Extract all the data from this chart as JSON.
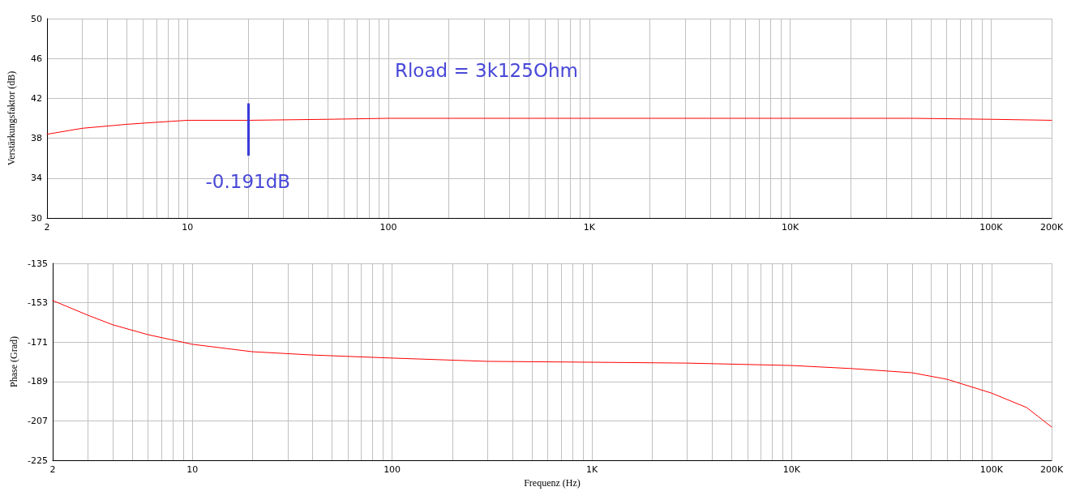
{
  "chart_data": [
    {
      "type": "line",
      "ylabel": "Verstärkungsfaktor (dB)",
      "log": "x",
      "grid": true,
      "marker": "none",
      "line_style": "solid",
      "xlim": [
        2,
        200000
      ],
      "ylim": [
        30,
        50
      ],
      "yticks": [
        30,
        34,
        38,
        42,
        46,
        50
      ],
      "xticks": [
        2,
        {
          "value": 3,
          "label": null
        },
        {
          "value": 4,
          "label": null
        },
        {
          "value": 5,
          "label": null
        },
        {
          "value": 6,
          "label": null
        },
        {
          "value": 7,
          "label": null
        },
        {
          "value": 8,
          "label": null
        },
        {
          "value": 9,
          "label": null
        },
        10,
        {
          "value": 20,
          "label": null
        },
        {
          "value": 30,
          "label": null
        },
        {
          "value": 40,
          "label": null
        },
        {
          "value": 50,
          "label": null
        },
        {
          "value": 60,
          "label": null
        },
        {
          "value": 70,
          "label": null
        },
        {
          "value": 80,
          "label": null
        },
        {
          "value": 90,
          "label": null
        },
        100,
        {
          "value": 200,
          "label": null
        },
        {
          "value": 300,
          "label": null
        },
        {
          "value": 400,
          "label": null
        },
        {
          "value": 500,
          "label": null
        },
        {
          "value": 600,
          "label": null
        },
        {
          "value": 700,
          "label": null
        },
        {
          "value": 800,
          "label": null
        },
        {
          "value": 900,
          "label": null
        },
        {
          "value": 1000,
          "label": "1K"
        },
        {
          "value": 2000,
          "label": null
        },
        {
          "value": 3000,
          "label": null
        },
        {
          "value": 4000,
          "label": null
        },
        {
          "value": 5000,
          "label": null
        },
        {
          "value": 6000,
          "label": null
        },
        {
          "value": 7000,
          "label": null
        },
        {
          "value": 8000,
          "label": null
        },
        {
          "value": 9000,
          "label": null
        },
        {
          "value": 10000,
          "label": "10K"
        },
        {
          "value": 20000,
          "label": null
        },
        {
          "value": 30000,
          "label": null
        },
        {
          "value": 40000,
          "label": null
        },
        {
          "value": 50000,
          "label": null
        },
        {
          "value": 60000,
          "label": null
        },
        {
          "value": 70000,
          "label": null
        },
        {
          "value": 80000,
          "label": null
        },
        {
          "value": 90000,
          "label": null
        },
        {
          "value": 100000,
          "label": "100K"
        },
        {
          "value": 200000,
          "label": "200K"
        }
      ],
      "x": [
        2,
        3,
        5,
        7,
        10,
        20,
        50,
        100,
        1000,
        10000,
        40000,
        100000,
        200000
      ],
      "series": [
        {
          "color": "#ff0000",
          "values": [
            38.4,
            39.0,
            39.4,
            39.6,
            39.8,
            39.8,
            39.9,
            40.0,
            40.0,
            40.0,
            40.0,
            39.9,
            39.8
          ]
        }
      ],
      "annotations": [
        "Rload = 3k125Ohm",
        {
          "text": "-0.191dB",
          "x": 20,
          "y": 39.85
        }
      ]
    },
    {
      "type": "line",
      "ylabel": "Phase (Grad)",
      "xlabel": "Frequenz (Hz)",
      "log": "x",
      "grid": true,
      "marker": "none",
      "line_style": "solid",
      "xlim": [
        2,
        200000
      ],
      "ylim": [
        -225,
        -135
      ],
      "yticks": [
        -225,
        -207,
        -189,
        -171,
        -153,
        -135
      ],
      "xticks": [
        2,
        {
          "value": 3,
          "label": null
        },
        {
          "value": 4,
          "label": null
        },
        {
          "value": 5,
          "label": null
        },
        {
          "value": 6,
          "label": null
        },
        {
          "value": 7,
          "label": null
        },
        {
          "value": 8,
          "label": null
        },
        {
          "value": 9,
          "label": null
        },
        10,
        {
          "value": 20,
          "label": null
        },
        {
          "value": 30,
          "label": null
        },
        {
          "value": 40,
          "label": null
        },
        {
          "value": 50,
          "label": null
        },
        {
          "value": 60,
          "label": null
        },
        {
          "value": 70,
          "label": null
        },
        {
          "value": 80,
          "label": null
        },
        {
          "value": 90,
          "label": null
        },
        100,
        {
          "value": 200,
          "label": null
        },
        {
          "value": 300,
          "label": null
        },
        {
          "value": 400,
          "label": null
        },
        {
          "value": 500,
          "label": null
        },
        {
          "value": 600,
          "label": null
        },
        {
          "value": 700,
          "label": null
        },
        {
          "value": 800,
          "label": null
        },
        {
          "value": 900,
          "label": null
        },
        {
          "value": 1000,
          "label": "1K"
        },
        {
          "value": 2000,
          "label": null
        },
        {
          "value": 3000,
          "label": null
        },
        {
          "value": 4000,
          "label": null
        },
        {
          "value": 5000,
          "label": null
        },
        {
          "value": 6000,
          "label": null
        },
        {
          "value": 7000,
          "label": null
        },
        {
          "value": 8000,
          "label": null
        },
        {
          "value": 9000,
          "label": null
        },
        {
          "value": 10000,
          "label": "10K"
        },
        {
          "value": 20000,
          "label": null
        },
        {
          "value": 30000,
          "label": null
        },
        {
          "value": 40000,
          "label": null
        },
        {
          "value": 50000,
          "label": null
        },
        {
          "value": 60000,
          "label": null
        },
        {
          "value": 70000,
          "label": null
        },
        {
          "value": 80000,
          "label": null
        },
        {
          "value": 90000,
          "label": null
        },
        {
          "value": 100000,
          "label": "100K"
        },
        {
          "value": 200000,
          "label": "200K"
        }
      ],
      "x": [
        2,
        3,
        4,
        6,
        10,
        20,
        40,
        100,
        300,
        1000,
        3000,
        10000,
        20000,
        40000,
        60000,
        100000,
        150000,
        200000
      ],
      "series": [
        {
          "color": "#ff0000",
          "values": [
            -152.0,
            -158.7,
            -163.1,
            -167.6,
            -172.0,
            -175.4,
            -176.9,
            -178.3,
            -179.8,
            -180.2,
            -180.6,
            -181.7,
            -183.1,
            -185.0,
            -188.0,
            -194.3,
            -200.9,
            -209.8
          ]
        }
      ]
    }
  ]
}
